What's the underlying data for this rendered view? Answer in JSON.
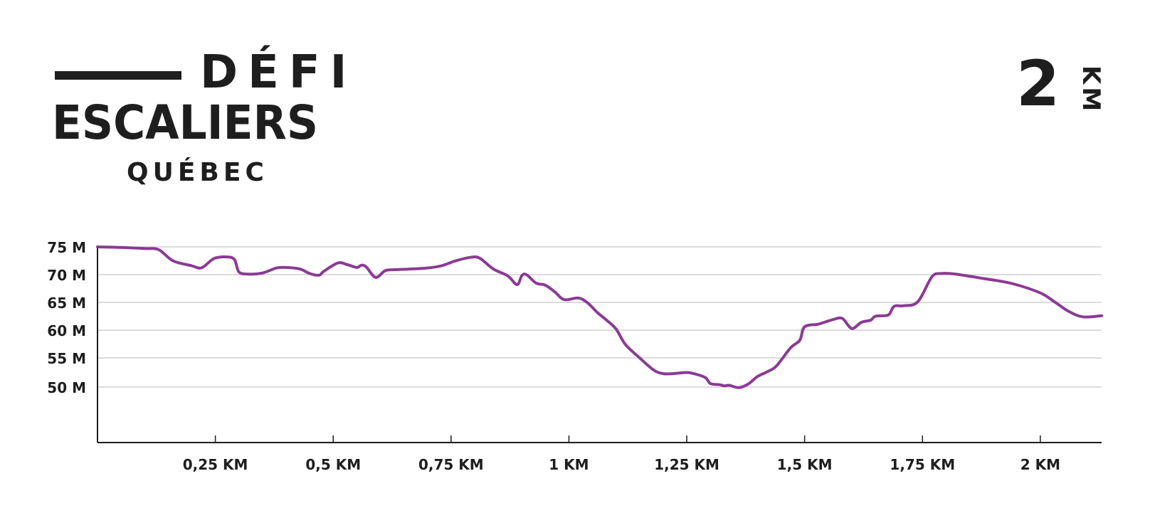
{
  "logo": {
    "line1": "DÉFI",
    "line2": "ESCALIERS",
    "line3": "QUÉBEC"
  },
  "distance": {
    "value": "2",
    "unit": "KM"
  },
  "colors": {
    "line": "#8b3a94",
    "grid": "#c8c8c8",
    "axis": "#1e1e1e",
    "text": "#1e1e1e"
  },
  "chart_data": {
    "type": "line",
    "title": "",
    "xlabel": "",
    "ylabel": "",
    "xlim": [
      0,
      2.13
    ],
    "ylim": [
      40,
      75
    ],
    "grid": true,
    "y_ticks": [
      {
        "value": 75,
        "label": "75 M"
      },
      {
        "value": 70,
        "label": "70 M"
      },
      {
        "value": 65,
        "label": "65 M"
      },
      {
        "value": 60,
        "label": "60 M"
      },
      {
        "value": 55,
        "label": "55 M"
      },
      {
        "value": 50,
        "label": "50 M"
      }
    ],
    "x_ticks": [
      {
        "value": 0.25,
        "label": "0,25 KM"
      },
      {
        "value": 0.5,
        "label": "0,5 KM"
      },
      {
        "value": 0.75,
        "label": "0,75 KM"
      },
      {
        "value": 1.0,
        "label": "1 KM"
      },
      {
        "value": 1.25,
        "label": "1,25 KM"
      },
      {
        "value": 1.5,
        "label": "1,5 KM"
      },
      {
        "value": 1.75,
        "label": "1,75 KM"
      },
      {
        "value": 2.0,
        "label": "2 KM"
      }
    ],
    "series": [
      {
        "x": [
          0,
          0.05,
          0.1,
          0.13,
          0.16,
          0.2,
          0.22,
          0.24,
          0.25,
          0.27,
          0.29,
          0.3,
          0.32,
          0.35,
          0.38,
          0.4,
          0.43,
          0.45,
          0.47,
          0.48,
          0.51,
          0.53,
          0.55,
          0.56,
          0.57,
          0.59,
          0.61,
          0.63,
          0.66,
          0.7,
          0.73,
          0.76,
          0.79,
          0.81,
          0.84,
          0.87,
          0.89,
          0.9,
          0.91,
          0.93,
          0.95,
          0.97,
          0.99,
          1.02,
          1.04,
          1.06,
          1.08,
          1.1,
          1.12,
          1.15,
          1.18,
          1.2,
          1.22,
          1.25,
          1.27,
          1.29,
          1.3,
          1.32,
          1.33,
          1.34,
          1.36,
          1.38,
          1.4,
          1.42,
          1.44,
          1.47,
          1.49,
          1.5,
          1.53,
          1.56,
          1.58,
          1.6,
          1.62,
          1.64,
          1.65,
          1.67,
          1.68,
          1.69,
          1.71,
          1.74,
          1.77,
          1.79,
          1.82,
          1.88,
          1.94,
          2.0,
          2.03,
          2.06,
          2.09,
          2.13
        ],
        "y": [
          75,
          74.9,
          74.7,
          74.5,
          72.5,
          71.6,
          71.2,
          72.5,
          73.0,
          73.2,
          72.8,
          70.5,
          70.1,
          70.3,
          71.2,
          71.3,
          71.0,
          70.2,
          69.9,
          70.6,
          72.1,
          71.8,
          71.3,
          71.7,
          71.4,
          69.5,
          70.7,
          70.9,
          71.0,
          71.2,
          71.6,
          72.5,
          73.1,
          73.0,
          71.0,
          69.8,
          68.2,
          69.8,
          70.0,
          68.5,
          68.1,
          66.9,
          65.5,
          65.8,
          64.9,
          63.2,
          61.8,
          60.2,
          57.4,
          55.0,
          52.9,
          52.3,
          52.3,
          52.5,
          52.2,
          51.6,
          50.6,
          50.4,
          50.2,
          50.3,
          49.9,
          50.5,
          51.8,
          52.6,
          53.6,
          56.8,
          58.2,
          60.6,
          61.1,
          61.9,
          62.1,
          60.3,
          61.4,
          61.8,
          62.5,
          62.6,
          62.9,
          64.3,
          64.4,
          65.1,
          69.6,
          70.2,
          70.1,
          69.3,
          68.4,
          66.7,
          65.1,
          63.4,
          62.4,
          62.6
        ]
      }
    ]
  }
}
